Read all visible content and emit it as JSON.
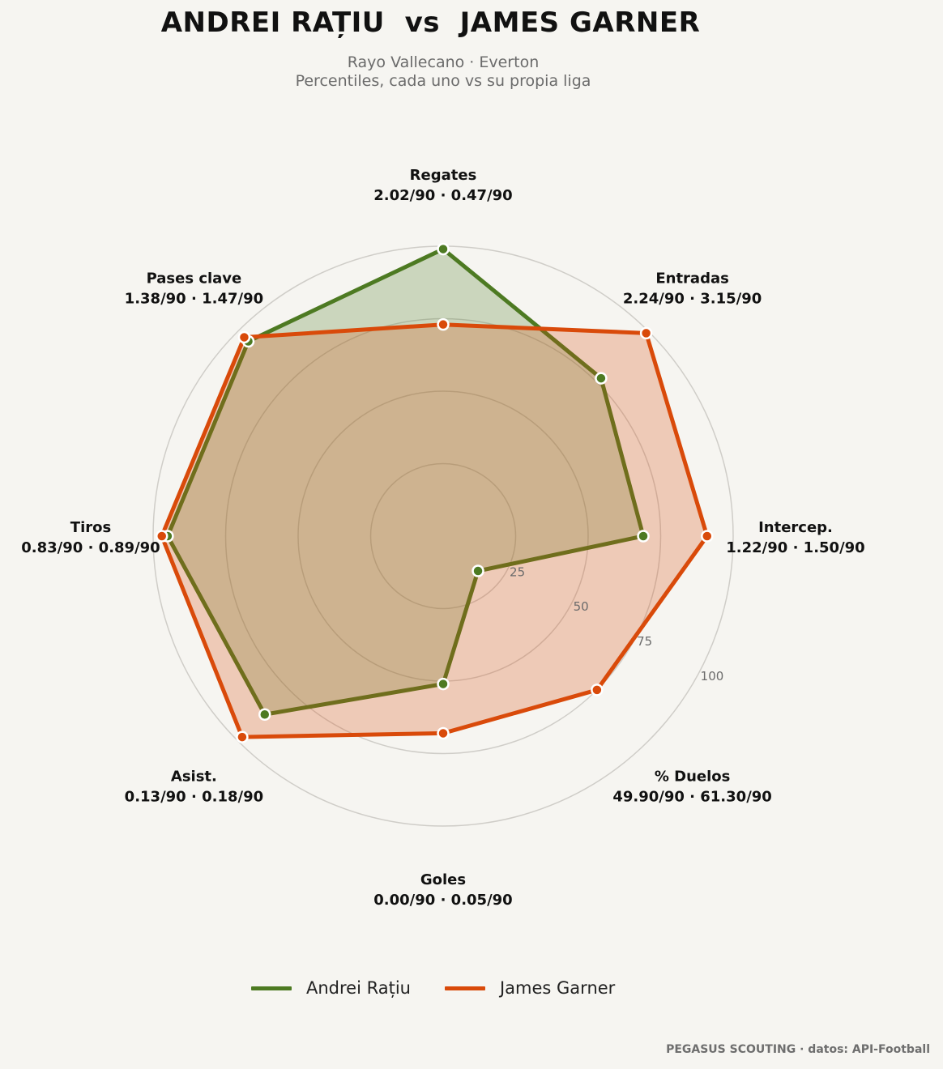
{
  "chart_data": {
    "type": "radar",
    "title": "ANDREI RAȚIU  vs  JAMES GARNER",
    "subtitle_lines": [
      "Rayo Vallecano · Everton",
      "Percentiles, cada uno vs su propia liga"
    ],
    "rmax": 100,
    "ring_ticks": [
      25,
      50,
      75,
      100
    ],
    "grid": true,
    "legend_position": "bottom-center",
    "categories": [
      {
        "name": "Regates",
        "values_text": "2.02/90 · 0.47/90"
      },
      {
        "name": "Entradas",
        "values_text": "2.24/90 · 3.15/90"
      },
      {
        "name": "Intercep.",
        "values_text": "1.22/90 · 1.50/90"
      },
      {
        "name": "% Duelos",
        "values_text": "49.90/90 · 61.30/90"
      },
      {
        "name": "Goles",
        "values_text": "0.00/90 · 0.05/90"
      },
      {
        "name": "Asist.",
        "values_text": "0.13/90 · 0.18/90"
      },
      {
        "name": "Tiros",
        "values_text": "0.83/90 · 0.89/90"
      },
      {
        "name": "Pases clave",
        "values_text": "1.38/90 · 1.47/90"
      }
    ],
    "series": [
      {
        "name": "Andrei Rațiu",
        "color": "#4d7a22",
        "values": [
          99,
          77,
          69,
          17,
          51,
          87,
          95,
          95
        ]
      },
      {
        "name": "James Garner",
        "color": "#d94a0a",
        "values": [
          73,
          99,
          91,
          75,
          68,
          98,
          97,
          97
        ]
      }
    ]
  },
  "footer": "PEGASUS SCOUTING · datos: API-Football"
}
